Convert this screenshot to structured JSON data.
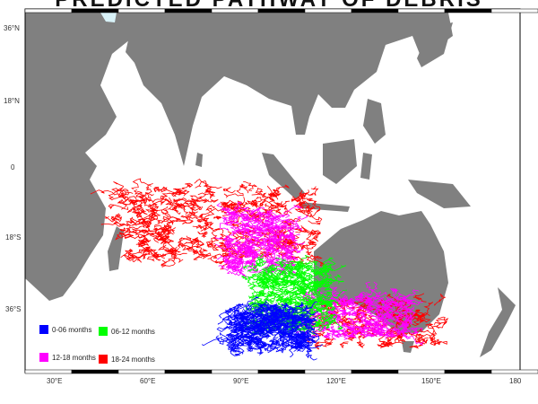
{
  "title": "PREDICTED PATHWAY OF DEBRIS",
  "map": {
    "lon_labels": [
      "30°E",
      "60°E",
      "90°E",
      "120°E",
      "150°E",
      "180"
    ],
    "lat_labels": [
      "36°N",
      "18°N",
      "0",
      "18°S",
      "36°S"
    ],
    "land_color": "#808080",
    "ocean_color": "#ffffff"
  },
  "legend": [
    {
      "label": "0-06 months",
      "color": "#0000ff"
    },
    {
      "label": "06-12 months",
      "color": "#00ff00"
    },
    {
      "label": "12-18 months",
      "color": "#ff00ff"
    },
    {
      "label": "18-24 months",
      "color": "#ff0000"
    }
  ]
}
